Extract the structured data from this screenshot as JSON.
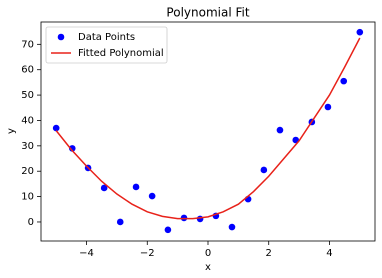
{
  "chart_data": {
    "type": "scatter",
    "title": "Polynomial Fit",
    "x_label": "x",
    "y_label": "y",
    "xlim": [
      -5.5,
      5.5
    ],
    "ylim": [
      -7.5,
      78.8
    ],
    "xticks": [
      {
        "value": -4,
        "label": "−4"
      },
      {
        "value": -2,
        "label": "−2"
      },
      0,
      2,
      4
    ],
    "yticks": [
      0,
      10,
      20,
      30,
      40,
      50,
      60,
      70
    ],
    "legend": "upper left",
    "series": [
      {
        "name": "Data Points",
        "type": "scatter",
        "color": "#0000ff",
        "x": [
          -5,
          -4.47,
          -3.95,
          -3.42,
          -2.89,
          -2.37,
          -1.84,
          -1.32,
          -0.79,
          -0.26,
          0.26,
          0.79,
          1.32,
          1.84,
          2.37,
          2.89,
          3.42,
          3.95,
          4.47,
          5
        ],
        "values": [
          37,
          29,
          21.3,
          13.4,
          0,
          13.8,
          10.2,
          -3.1,
          1.6,
          1.2,
          2.4,
          -2,
          9,
          20.5,
          36.2,
          32.3,
          39.4,
          45.3,
          55.5,
          74.8
        ]
      },
      {
        "name": "Fitted Polynomial",
        "type": "line",
        "color": "#e8221a",
        "x": [
          -5,
          -4.5,
          -4,
          -3.5,
          -3,
          -2.5,
          -2,
          -1.5,
          -1,
          -0.5,
          0,
          0.5,
          1,
          1.5,
          2,
          2.5,
          3,
          3.5,
          4,
          4.5,
          5
        ],
        "values": [
          36,
          28.5,
          22,
          16,
          11,
          7,
          4,
          2.2,
          1.3,
          1.3,
          2,
          4,
          7,
          12,
          18,
          25,
          32,
          41,
          50,
          61,
          72.5
        ]
      }
    ]
  }
}
